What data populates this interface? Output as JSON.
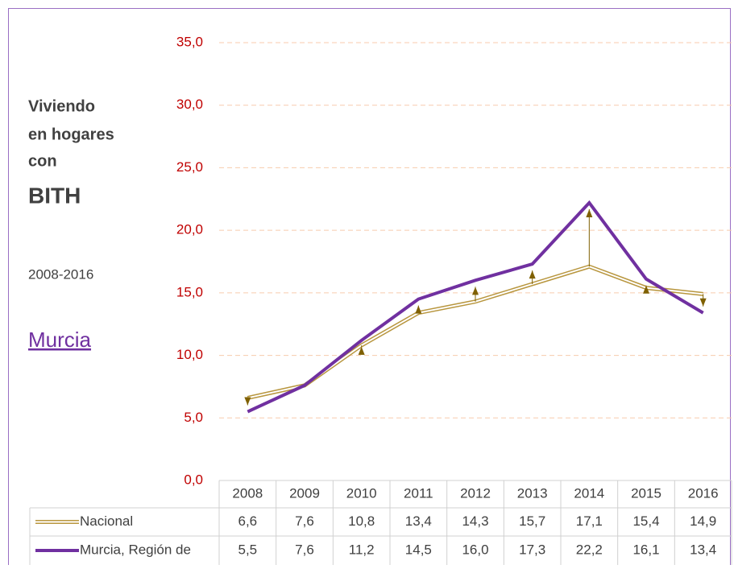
{
  "chart_data": {
    "type": "line",
    "title_lines": [
      "Viviendo",
      "en hogares",
      "con"
    ],
    "title_emphasis": "BITH",
    "subtitle": "2008-2016",
    "region": "Murcia",
    "categories": [
      "2008",
      "2009",
      "2010",
      "2011",
      "2012",
      "2013",
      "2014",
      "2015",
      "2016"
    ],
    "series": [
      {
        "name": "Nacional",
        "color": "#b8963e",
        "values": [
          6.6,
          7.6,
          10.8,
          13.4,
          14.3,
          15.7,
          17.1,
          15.4,
          14.9
        ],
        "value_labels": [
          "6,6",
          "7,6",
          "10,8",
          "13,4",
          "14,3",
          "15,7",
          "17,1",
          "15,4",
          "14,9"
        ]
      },
      {
        "name": "Murcia, Región de",
        "color": "#7030a0",
        "values": [
          5.5,
          7.6,
          11.2,
          14.5,
          16.0,
          17.3,
          22.2,
          16.1,
          13.4
        ],
        "value_labels": [
          "5,5",
          "7,6",
          "11,2",
          "14,5",
          "16,0",
          "17,3",
          "22,2",
          "16,1",
          "13,4"
        ]
      }
    ],
    "ylim": [
      0,
      35
    ],
    "yticks": [
      {
        "value": 0,
        "label": "0,0"
      },
      {
        "value": 5,
        "label": "5,0"
      },
      {
        "value": 10,
        "label": "10,0"
      },
      {
        "value": 15,
        "label": "15,0"
      },
      {
        "value": 20,
        "label": "20,0"
      },
      {
        "value": 25,
        "label": "25,0"
      },
      {
        "value": 30,
        "label": "30,0"
      },
      {
        "value": 35,
        "label": "35,0"
      }
    ],
    "grid": true
  }
}
